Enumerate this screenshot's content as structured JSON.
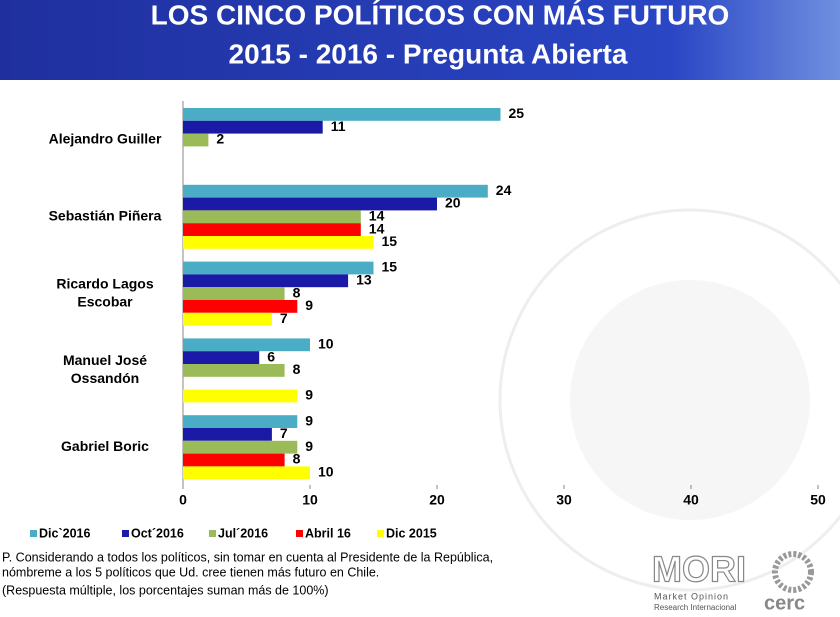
{
  "chart_data": {
    "type": "bar",
    "orientation": "horizontal",
    "title": [
      "LOS  CINCO POLÍTICOS CON MÁS FUTURO",
      "2015 -  2016  - Pregunta Abierta"
    ],
    "categories": [
      [
        "Alejandro Guiller"
      ],
      [
        "Sebastián Piñera"
      ],
      [
        "Ricardo Lagos",
        "Escobar"
      ],
      [
        "Manuel José",
        "Ossandón"
      ],
      [
        "Gabriel Boric"
      ]
    ],
    "series": [
      {
        "name": "Dic`2016",
        "color": "#4bacc6",
        "values": [
          25,
          24,
          15,
          10,
          9
        ]
      },
      {
        "name": "Oct´2016",
        "color": "#1a1aa6",
        "values": [
          11,
          20,
          13,
          6,
          7
        ]
      },
      {
        "name": "Jul´2016",
        "color": "#9bbb59",
        "values": [
          2,
          14,
          8,
          8,
          9
        ]
      },
      {
        "name": "Abril 16",
        "color": "#ff0000",
        "values": [
          null,
          14,
          9,
          null,
          8
        ]
      },
      {
        "name": "Dic 2015",
        "color": "#ffff00",
        "values": [
          null,
          15,
          7,
          9,
          10
        ]
      }
    ],
    "xlim": [
      0,
      50
    ],
    "xticks": [
      0,
      10,
      20,
      30,
      40,
      50
    ],
    "legend": "bottom",
    "footnote": [
      "P. Considerando a todos los políticos, sin tomar en cuenta al Presidente de la República,",
      "nómbreme a los 5 políticos que Ud. cree tienen más futuro en Chile.",
      "(Respuesta múltiple, los porcentajes suman más de 100%)"
    ],
    "logo": {
      "name": "MORI",
      "line1": "Market Opinion",
      "line2": "Research Internacional",
      "partner": "cerc"
    }
  }
}
